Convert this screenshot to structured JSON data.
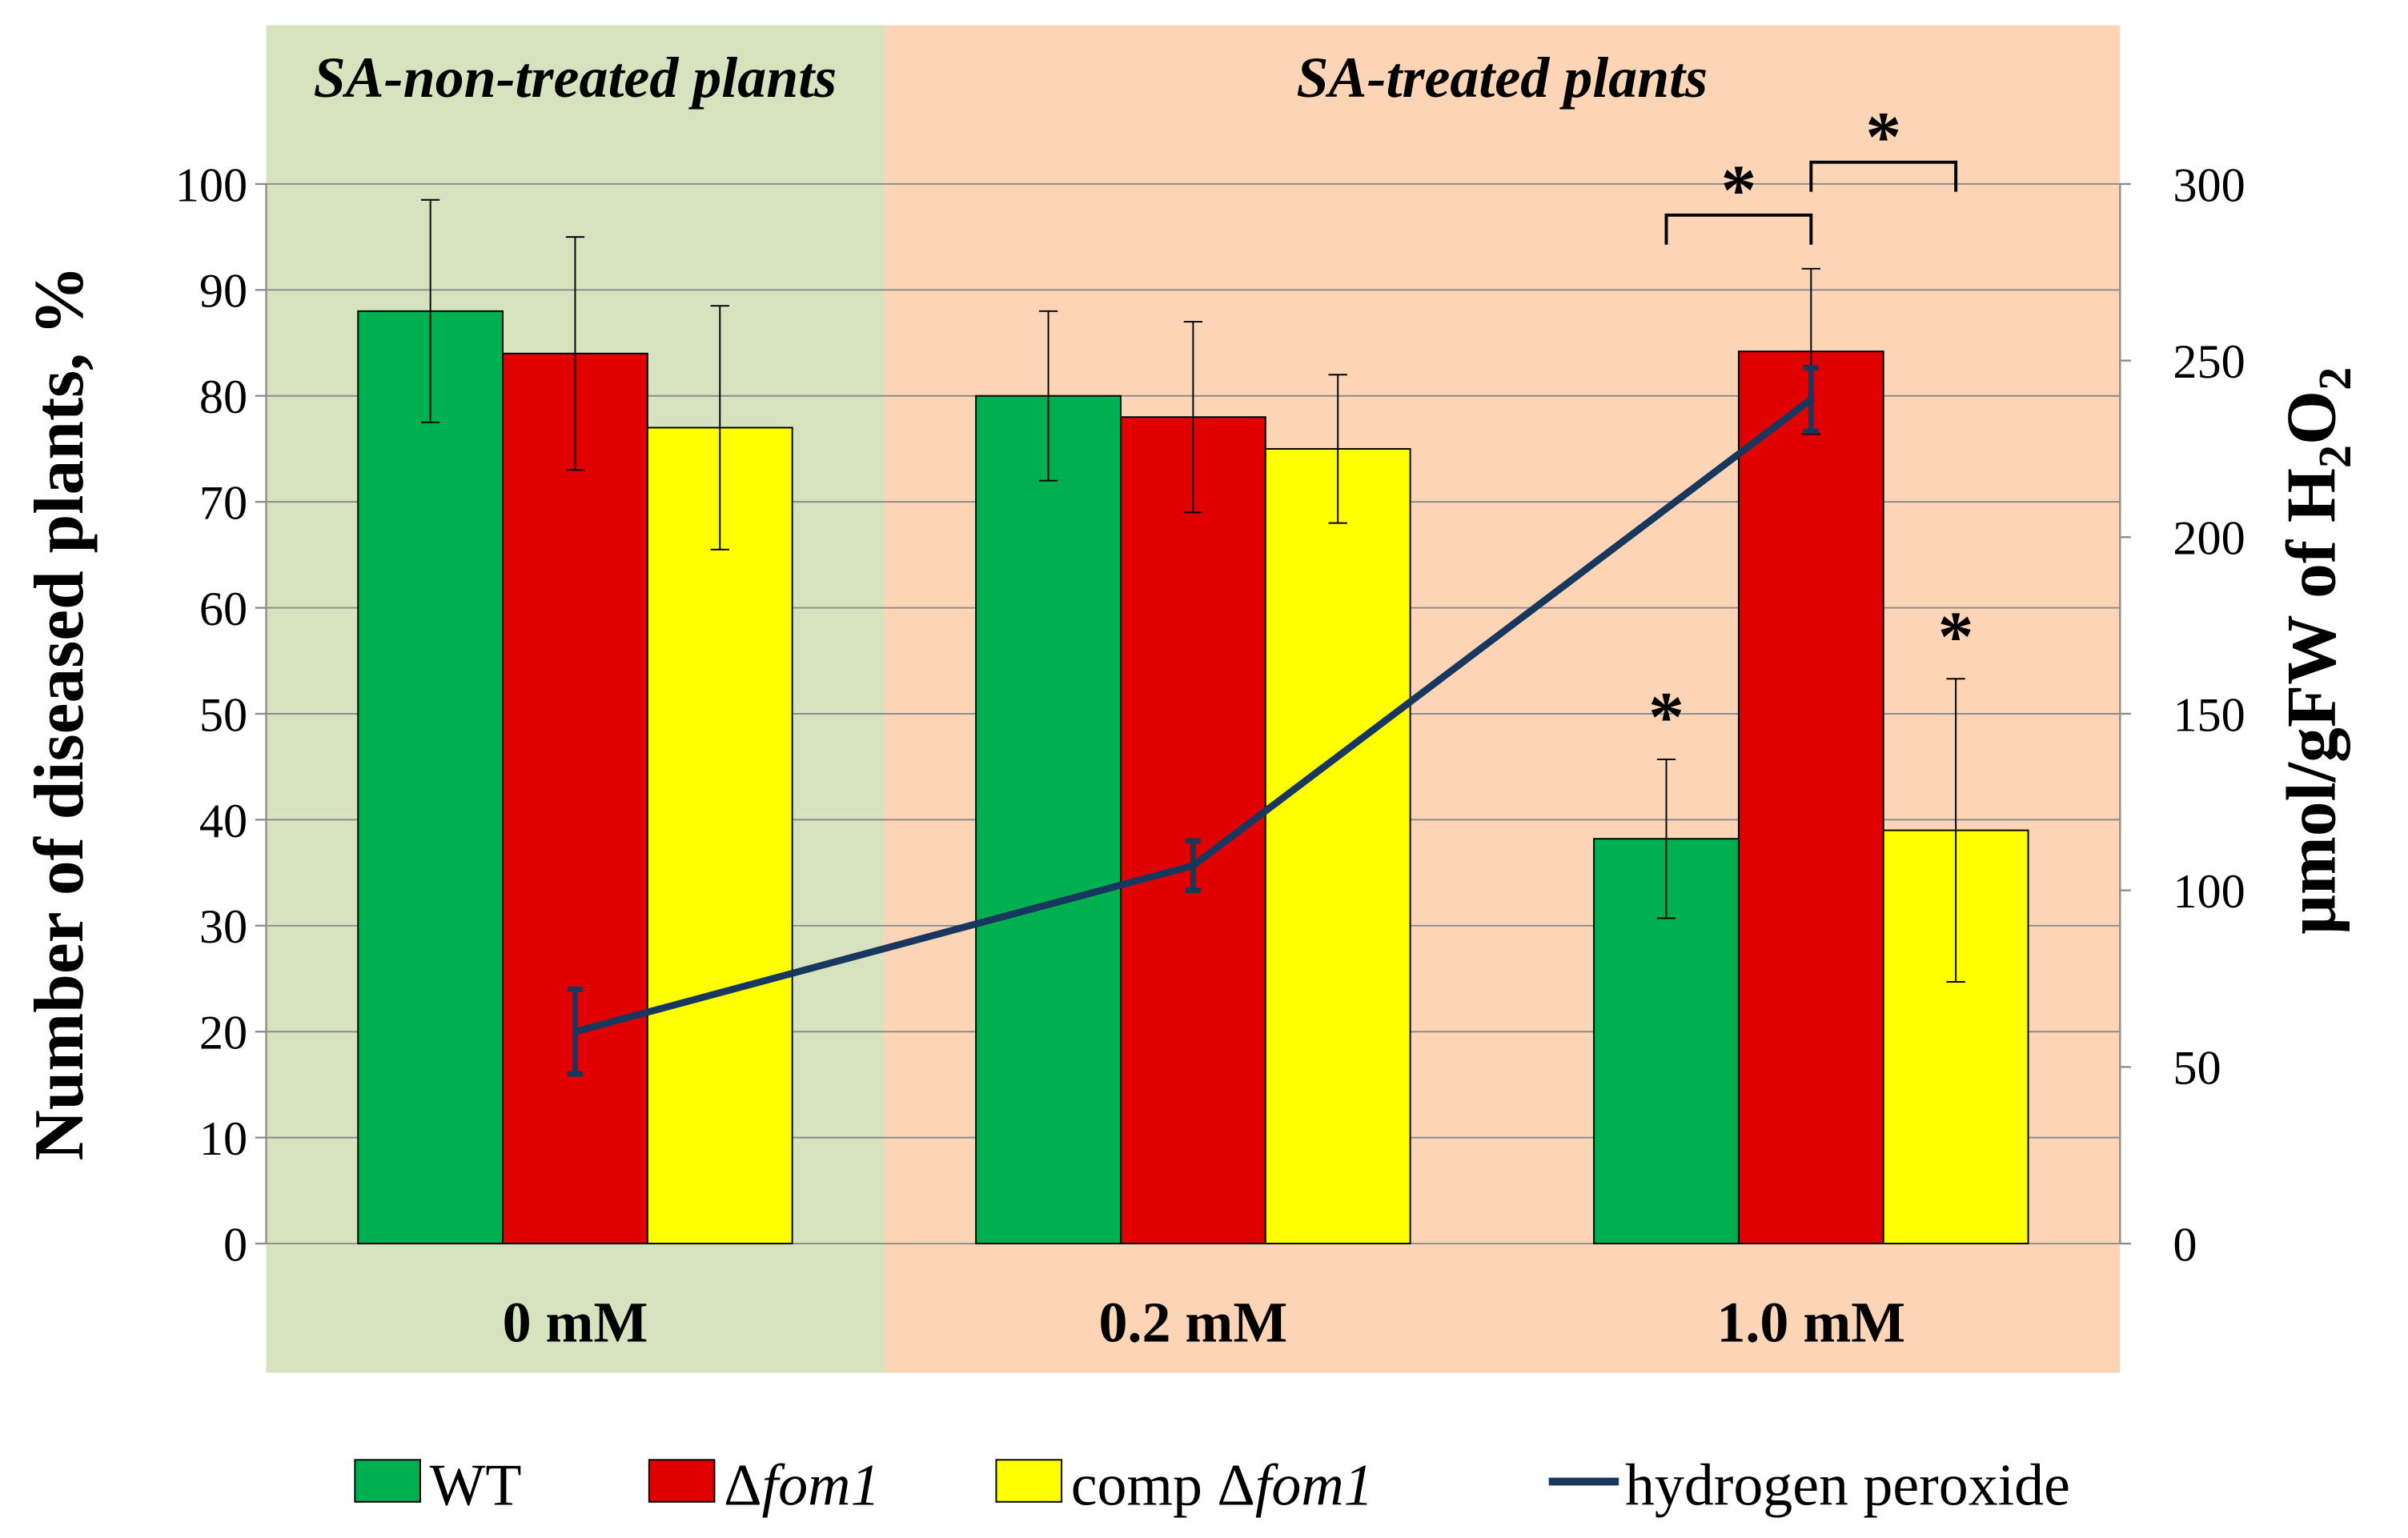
{
  "chart_data": {
    "type": "bar",
    "categories": [
      "0 mM",
      "0.2 mM",
      "1.0 mM"
    ],
    "regions": [
      {
        "label": "SA-non-treated plants",
        "color": "#d6e3be",
        "categories": [
          "0 mM"
        ]
      },
      {
        "label": "SA-treated plants",
        "color": "#fbd5b5",
        "categories": [
          "0.2 mM",
          "1.0 mM"
        ]
      }
    ],
    "series": [
      {
        "name": "WT",
        "color": "#00b050",
        "values": [
          88,
          80,
          38.2
        ],
        "errors": [
          10.5,
          8,
          7.5
        ]
      },
      {
        "name": "Δfom1",
        "name_prefix": "Δ",
        "name_italic": "fom1",
        "color": "#e00000",
        "values": [
          84,
          78,
          84.2
        ],
        "errors": [
          11,
          9,
          7.8
        ]
      },
      {
        "name": "comp Δfom1",
        "name_prefix": "comp Δ",
        "name_italic": "fom1",
        "color": "#ffff00",
        "values": [
          77,
          75,
          39
        ],
        "errors": [
          11.5,
          7,
          14.3
        ]
      }
    ],
    "line_series": {
      "name": "hydrogen peroxide",
      "color": "#17375e",
      "axis": "right",
      "values": [
        60,
        107,
        239
      ],
      "errors": [
        12,
        7,
        9
      ],
      "x_positions": [
        "0 mM:Δfom1",
        "0.2 mM:Δfom1",
        "1.0 mM:Δfom1"
      ]
    },
    "ylabel": "Number of diseased plants, %",
    "y2label_parts": {
      "prefix": "μmol/gFW of H",
      "sub1": "2",
      "mid": "O",
      "sub2": "2"
    },
    "ylim": [
      0,
      100
    ],
    "yticks": [
      0,
      10,
      20,
      30,
      40,
      50,
      60,
      70,
      80,
      90,
      100
    ],
    "y2lim": [
      0,
      300
    ],
    "y2ticks": [
      0,
      50,
      100,
      150,
      200,
      250,
      300
    ],
    "grid": true,
    "significance": {
      "star": "*",
      "single_stars_on": [
        "1.0 mM:WT",
        "1.0 mM:comp Δfom1"
      ],
      "brackets": [
        {
          "from": "1.0 mM:WT",
          "to": "1.0 mM:Δfom1",
          "level": 138
        },
        {
          "from": "1.0 mM:Δfom1",
          "to": "1.0 mM:comp Δfom1",
          "level": 104
        }
      ]
    },
    "legend_position": "bottom"
  }
}
